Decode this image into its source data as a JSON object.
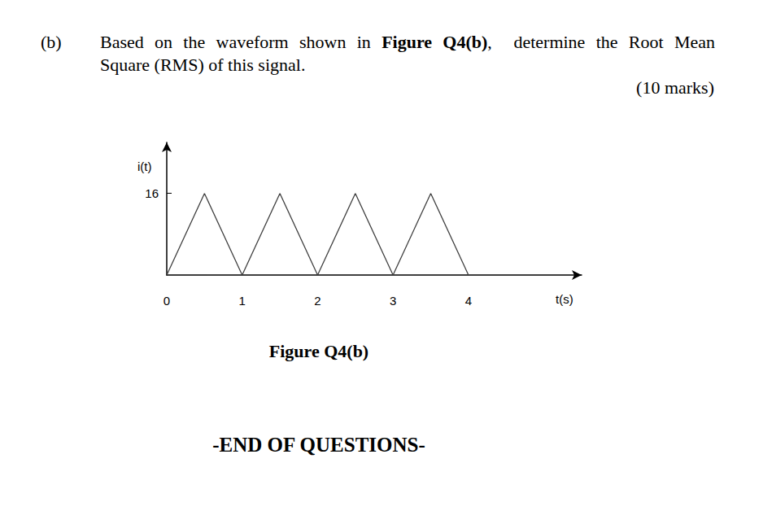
{
  "label": "(b)",
  "question": [
    [
      {
        "text": "Based on the waveform shown in "
      },
      {
        "text": "Figure Q4(b)",
        "bold": true
      },
      {
        "text": ",  determine the Root Mean"
      }
    ],
    [
      {
        "text": "Square (RMS) of this signal."
      }
    ]
  ],
  "marks": "(10 marks)",
  "chart_data": {
    "type": "line",
    "xlabel": "t(s)",
    "ylabel": "i(t)",
    "x": [
      0,
      0.5,
      1,
      1.5,
      2,
      2.5,
      3,
      3.5,
      4
    ],
    "values": [
      0,
      16,
      0,
      16,
      0,
      16,
      0,
      16,
      0
    ],
    "xlim": [
      0,
      5.5
    ],
    "ylim": [
      0,
      26
    ],
    "xticks": [
      0,
      1,
      2,
      3,
      4
    ],
    "yticks": [
      16
    ],
    "color": "#404040",
    "grid": false
  },
  "caption": "Figure Q4(b)",
  "footer": "-END OF QUESTIONS-"
}
